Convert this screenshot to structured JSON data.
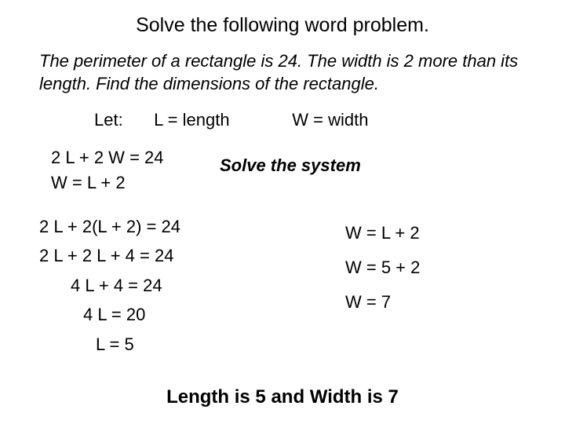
{
  "title": "Solve the following word problem.",
  "problem": "The perimeter of a rectangle is 24.   The width is 2 more than its length.   Find the dimensions of the rectangle.",
  "let": {
    "label": "Let:",
    "l": "L  =  length",
    "w": "W  =  width"
  },
  "system": {
    "eq1": "2 L  +  2 W  =  24",
    "eq2": "W  =  L  +  2"
  },
  "solve_label": "Solve the system",
  "work_left": {
    "step1": "2 L  +  2(L + 2)  =  24",
    "step2": "2 L  +  2 L  +  4  =  24",
    "step3": "4 L  +  4  =  24",
    "step4": "4 L  =  20",
    "step5": "L  =  5"
  },
  "work_right": {
    "step1": "W  =  L  +  2",
    "step2": "W  =  5  +  2",
    "step3": "W  =  7"
  },
  "answer": "Length is 5  and Width is 7"
}
